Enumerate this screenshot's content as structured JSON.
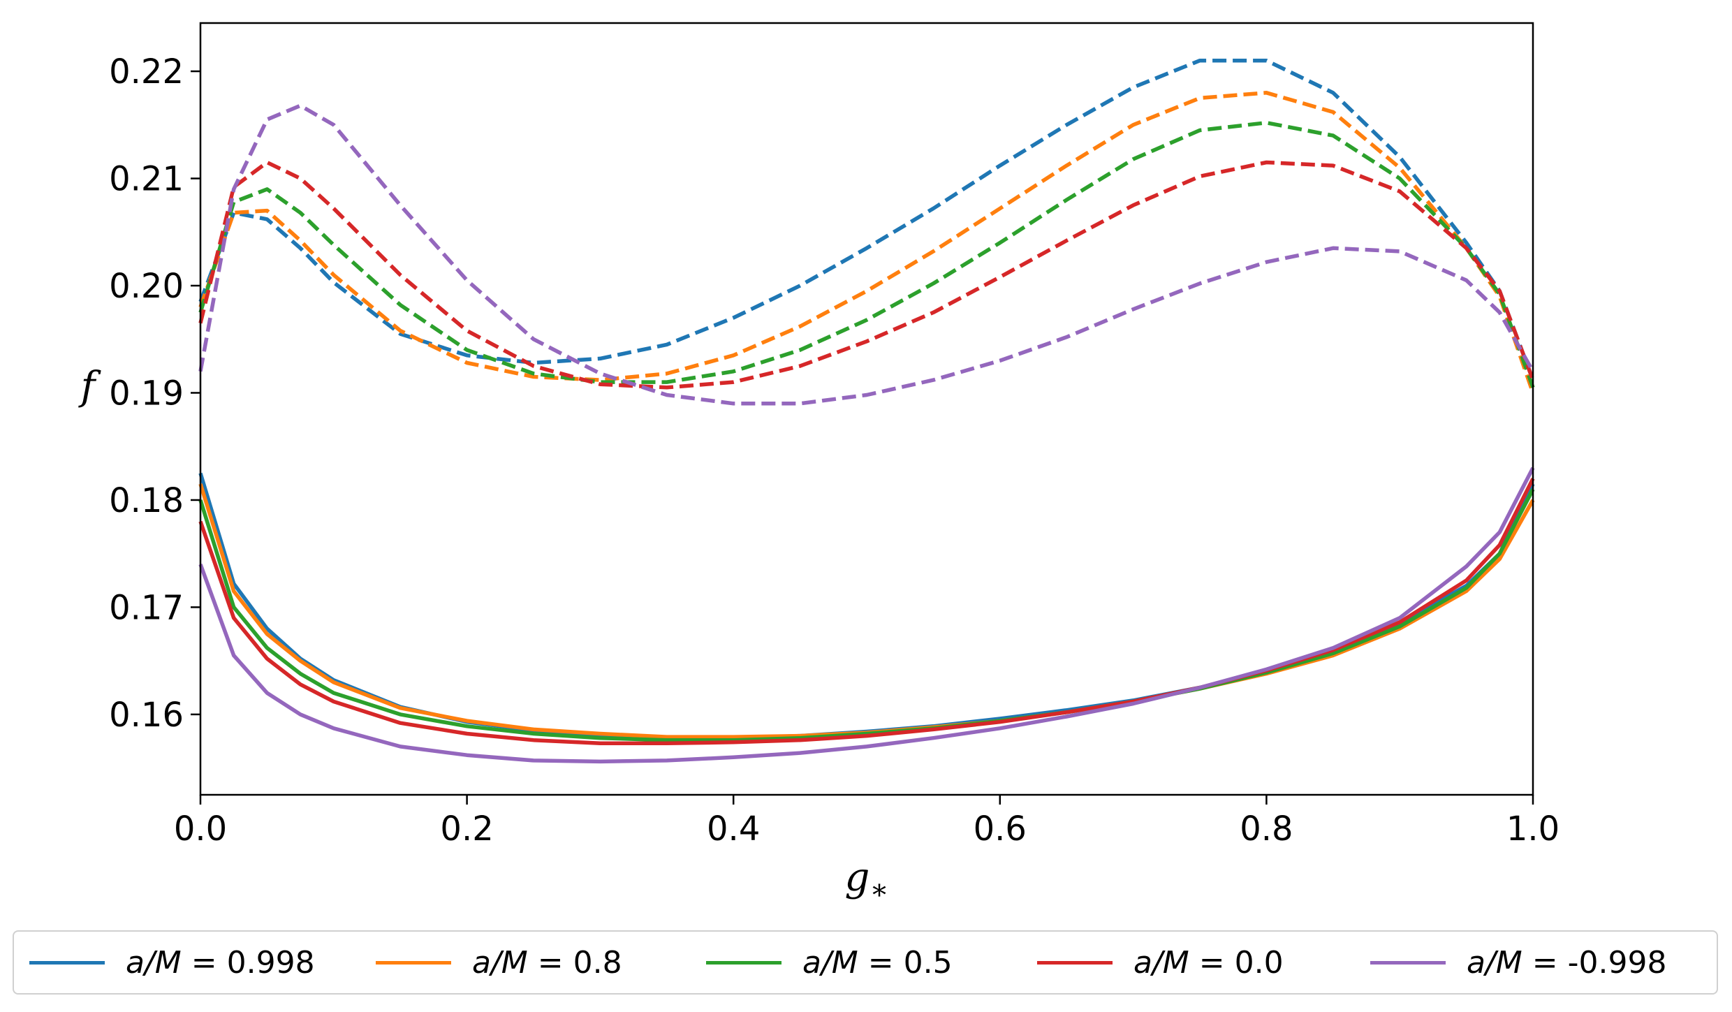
{
  "chart_data": {
    "type": "line",
    "xlabel": "g*",
    "ylabel": "f",
    "xlim": [
      0.0,
      1.0
    ],
    "ylim": [
      0.1525,
      0.2245
    ],
    "xticks": [
      "0.0",
      "0.2",
      "0.4",
      "0.6",
      "0.8",
      "1.0"
    ],
    "yticks": [
      "0.16",
      "0.17",
      "0.18",
      "0.19",
      "0.20",
      "0.21",
      "0.22"
    ],
    "legend_position": "bottom, outside",
    "styles": {
      "solid": "solid",
      "dashed": "dashed"
    },
    "series": [
      {
        "name": "a/M = 0.998",
        "label_prefix": "a/M",
        "label_value": "= 0.998",
        "color": "#1f77b4",
        "dashed": {
          "x": [
            0.0,
            0.025,
            0.05,
            0.075,
            0.1,
            0.15,
            0.2,
            0.25,
            0.3,
            0.35,
            0.4,
            0.45,
            0.5,
            0.55,
            0.6,
            0.65,
            0.7,
            0.75,
            0.8,
            0.85,
            0.9,
            0.95,
            0.975,
            1.0
          ],
          "y": [
            0.1985,
            0.2068,
            0.2062,
            0.2035,
            0.2003,
            0.1955,
            0.1935,
            0.1928,
            0.1932,
            0.1945,
            0.197,
            0.2,
            0.2035,
            0.2072,
            0.2112,
            0.215,
            0.2185,
            0.221,
            0.221,
            0.218,
            0.212,
            0.204,
            0.1995,
            0.1912
          ]
        },
        "solid": {
          "x": [
            0.0,
            0.025,
            0.05,
            0.075,
            0.1,
            0.15,
            0.2,
            0.25,
            0.3,
            0.35,
            0.4,
            0.45,
            0.5,
            0.55,
            0.6,
            0.65,
            0.7,
            0.75,
            0.8,
            0.85,
            0.9,
            0.95,
            0.975,
            1.0
          ],
          "y": [
            0.1825,
            0.1722,
            0.168,
            0.1652,
            0.1632,
            0.1607,
            0.1593,
            0.1585,
            0.158,
            0.1578,
            0.1578,
            0.158,
            0.1584,
            0.1589,
            0.1596,
            0.1604,
            0.1613,
            0.1625,
            0.164,
            0.166,
            0.1685,
            0.172,
            0.175,
            0.1815
          ]
        }
      },
      {
        "name": "a/M = 0.8",
        "label_prefix": "a/M",
        "label_value": "= 0.8",
        "color": "#ff7f0e",
        "dashed": {
          "x": [
            0.0,
            0.025,
            0.05,
            0.075,
            0.1,
            0.15,
            0.2,
            0.25,
            0.3,
            0.35,
            0.4,
            0.45,
            0.5,
            0.55,
            0.6,
            0.65,
            0.7,
            0.75,
            0.8,
            0.85,
            0.9,
            0.95,
            0.975,
            1.0
          ],
          "y": [
            0.198,
            0.2068,
            0.207,
            0.2042,
            0.201,
            0.1958,
            0.1928,
            0.1915,
            0.1912,
            0.1918,
            0.1935,
            0.1962,
            0.1995,
            0.2032,
            0.2072,
            0.2112,
            0.215,
            0.2175,
            0.218,
            0.2162,
            0.211,
            0.2035,
            0.199,
            0.19
          ]
        },
        "solid": {
          "x": [
            0.0,
            0.025,
            0.05,
            0.075,
            0.1,
            0.15,
            0.2,
            0.25,
            0.3,
            0.35,
            0.4,
            0.45,
            0.5,
            0.55,
            0.6,
            0.65,
            0.7,
            0.75,
            0.8,
            0.85,
            0.9,
            0.95,
            0.975,
            1.0
          ],
          "y": [
            0.1815,
            0.1715,
            0.1675,
            0.165,
            0.163,
            0.1606,
            0.1594,
            0.1586,
            0.1582,
            0.1579,
            0.1579,
            0.158,
            0.1583,
            0.1588,
            0.1594,
            0.1602,
            0.1612,
            0.1624,
            0.1638,
            0.1655,
            0.168,
            0.1715,
            0.1745,
            0.18
          ]
        }
      },
      {
        "name": "a/M = 0.5",
        "label_prefix": "a/M",
        "label_value": "= 0.5",
        "color": "#2ca02c",
        "dashed": {
          "x": [
            0.0,
            0.025,
            0.05,
            0.075,
            0.1,
            0.15,
            0.2,
            0.25,
            0.3,
            0.35,
            0.4,
            0.45,
            0.5,
            0.55,
            0.6,
            0.65,
            0.7,
            0.75,
            0.8,
            0.85,
            0.9,
            0.95,
            0.975,
            1.0
          ],
          "y": [
            0.1975,
            0.2078,
            0.209,
            0.2068,
            0.2038,
            0.1982,
            0.194,
            0.1918,
            0.191,
            0.191,
            0.192,
            0.194,
            0.1968,
            0.2002,
            0.204,
            0.208,
            0.2118,
            0.2145,
            0.2152,
            0.214,
            0.21,
            0.2035,
            0.1992,
            0.1905
          ]
        },
        "solid": {
          "x": [
            0.0,
            0.025,
            0.05,
            0.075,
            0.1,
            0.15,
            0.2,
            0.25,
            0.3,
            0.35,
            0.4,
            0.45,
            0.5,
            0.55,
            0.6,
            0.65,
            0.7,
            0.75,
            0.8,
            0.85,
            0.9,
            0.95,
            0.975,
            1.0
          ],
          "y": [
            0.18,
            0.17,
            0.1662,
            0.1638,
            0.162,
            0.16,
            0.1589,
            0.1582,
            0.1578,
            0.1576,
            0.1576,
            0.1578,
            0.1582,
            0.1587,
            0.1594,
            0.1602,
            0.1612,
            0.1624,
            0.1639,
            0.1657,
            0.1682,
            0.1718,
            0.175,
            0.181
          ]
        }
      },
      {
        "name": "a/M = 0.0",
        "label_prefix": "a/M",
        "label_value": "= 0.0",
        "color": "#d62728",
        "dashed": {
          "x": [
            0.0,
            0.025,
            0.05,
            0.075,
            0.1,
            0.15,
            0.2,
            0.25,
            0.3,
            0.35,
            0.4,
            0.45,
            0.5,
            0.55,
            0.6,
            0.65,
            0.7,
            0.75,
            0.8,
            0.85,
            0.9,
            0.95,
            0.975,
            1.0
          ],
          "y": [
            0.1965,
            0.2092,
            0.2115,
            0.21,
            0.2072,
            0.201,
            0.1958,
            0.1925,
            0.1908,
            0.1905,
            0.191,
            0.1925,
            0.1948,
            0.1975,
            0.2008,
            0.2042,
            0.2075,
            0.2102,
            0.2115,
            0.2112,
            0.2088,
            0.2035,
            0.1995,
            0.1912
          ]
        },
        "solid": {
          "x": [
            0.0,
            0.025,
            0.05,
            0.075,
            0.1,
            0.15,
            0.2,
            0.25,
            0.3,
            0.35,
            0.4,
            0.45,
            0.5,
            0.55,
            0.6,
            0.65,
            0.7,
            0.75,
            0.8,
            0.85,
            0.9,
            0.95,
            0.975,
            1.0
          ],
          "y": [
            0.178,
            0.169,
            0.1652,
            0.1628,
            0.1612,
            0.1592,
            0.1582,
            0.1576,
            0.1573,
            0.1573,
            0.1574,
            0.1576,
            0.158,
            0.1586,
            0.1593,
            0.1602,
            0.1612,
            0.1625,
            0.1641,
            0.166,
            0.1686,
            0.1725,
            0.1758,
            0.182
          ]
        }
      },
      {
        "name": "a/M = -0.998",
        "label_prefix": "a/M",
        "label_value": "= -0.998",
        "color": "#9467bd",
        "dashed": {
          "x": [
            0.0,
            0.025,
            0.05,
            0.075,
            0.1,
            0.15,
            0.2,
            0.25,
            0.3,
            0.35,
            0.4,
            0.45,
            0.5,
            0.55,
            0.6,
            0.65,
            0.7,
            0.75,
            0.8,
            0.85,
            0.9,
            0.95,
            0.975,
            1.0
          ],
          "y": [
            0.192,
            0.209,
            0.2155,
            0.2168,
            0.215,
            0.2075,
            0.2005,
            0.195,
            0.1918,
            0.1898,
            0.189,
            0.189,
            0.1898,
            0.1912,
            0.193,
            0.1952,
            0.1978,
            0.2002,
            0.2022,
            0.2035,
            0.2032,
            0.2005,
            0.1975,
            0.192
          ]
        },
        "solid": {
          "x": [
            0.0,
            0.025,
            0.05,
            0.075,
            0.1,
            0.15,
            0.2,
            0.25,
            0.3,
            0.35,
            0.4,
            0.45,
            0.5,
            0.55,
            0.6,
            0.65,
            0.7,
            0.75,
            0.8,
            0.85,
            0.9,
            0.95,
            0.975,
            1.0
          ],
          "y": [
            0.174,
            0.1655,
            0.162,
            0.16,
            0.1587,
            0.157,
            0.1562,
            0.1557,
            0.1556,
            0.1557,
            0.156,
            0.1564,
            0.157,
            0.1578,
            0.1587,
            0.1598,
            0.161,
            0.1625,
            0.1642,
            0.1662,
            0.169,
            0.1738,
            0.177,
            0.183
          ]
        }
      }
    ]
  }
}
